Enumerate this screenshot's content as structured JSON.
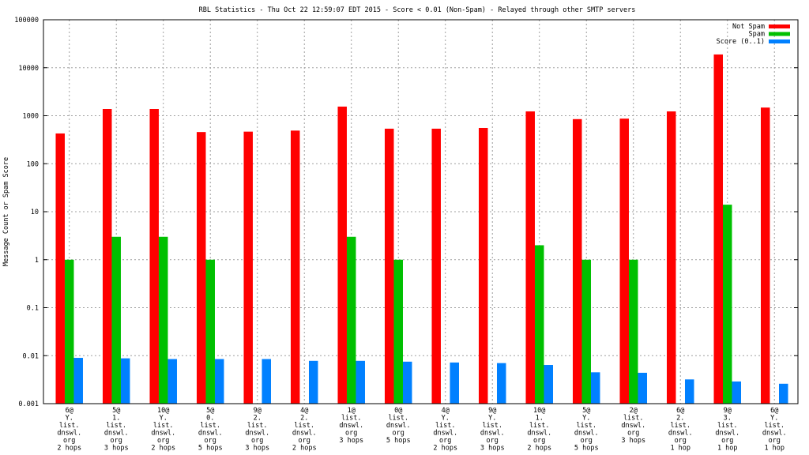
{
  "chart_data": {
    "type": "bar",
    "title": "RBL Statistics - Thu Oct 22 12:59:07 EDT 2015 - Score < 0.01 (Non-Spam) - Relayed through other SMTP servers",
    "xlabel": "",
    "ylabel": "Message Count or Spam Score",
    "yscale": "log",
    "ylim": [
      0.001,
      100000
    ],
    "yticks": [
      "0.001",
      "0.01",
      "0.1",
      "1",
      "10",
      "100",
      "1000",
      "10000",
      "100000"
    ],
    "grid": true,
    "legend_position": "top-right",
    "categories": [
      [
        "6@",
        "Y.",
        "list.",
        "dnswl.",
        "org",
        "2 hops"
      ],
      [
        "5@",
        "1.",
        "list.",
        "dnswl.",
        "org",
        "3 hops"
      ],
      [
        "10@",
        "Y.",
        "list.",
        "dnswl.",
        "org",
        "2 hops"
      ],
      [
        "5@",
        "0.",
        "list.",
        "dnswl.",
        "org",
        "5 hops"
      ],
      [
        "9@",
        "2.",
        "list.",
        "dnswl.",
        "org",
        "3 hops"
      ],
      [
        "4@",
        "2.",
        "list.",
        "dnswl.",
        "org",
        "2 hops"
      ],
      [
        "1@",
        "list.",
        "dnswl.",
        "org",
        "3 hops"
      ],
      [
        "0@",
        "list.",
        "dnswl.",
        "org",
        "5 hops"
      ],
      [
        "4@",
        "Y.",
        "list.",
        "dnswl.",
        "org",
        "2 hops"
      ],
      [
        "9@",
        "Y.",
        "list.",
        "dnswl.",
        "org",
        "3 hops"
      ],
      [
        "10@",
        "1.",
        "list.",
        "dnswl.",
        "org",
        "2 hops"
      ],
      [
        "5@",
        "Y.",
        "list.",
        "dnswl.",
        "org",
        "5 hops"
      ],
      [
        "2@",
        "list.",
        "dnswl.",
        "org",
        "3 hops"
      ],
      [
        "6@",
        "2.",
        "list.",
        "dnswl.",
        "org",
        "1 hop"
      ],
      [
        "9@",
        "3.",
        "list.",
        "dnswl.",
        "org",
        "1 hop"
      ],
      [
        "6@",
        "Y.",
        "list.",
        "dnswl.",
        "org",
        "1 hop"
      ]
    ],
    "series": [
      {
        "name": "Not Spam",
        "color": "#ff0000",
        "values": [
          427,
          1380,
          1380,
          457,
          466,
          490,
          1550,
          537,
          537,
          556,
          1230,
          850,
          870,
          1230,
          18900,
          1480
        ]
      },
      {
        "name": "Spam",
        "color": "#00c000",
        "values": [
          1,
          3,
          3,
          1,
          0,
          0,
          3,
          1,
          0,
          0,
          2,
          1,
          1,
          0,
          14,
          0
        ]
      },
      {
        "name": "Score (0..1)",
        "color": "#0080ff",
        "values": [
          0.009,
          0.0088,
          0.0085,
          0.0085,
          0.0085,
          0.0078,
          0.0078,
          0.0075,
          0.0072,
          0.007,
          0.0064,
          0.0045,
          0.0044,
          0.0032,
          0.0029,
          0.0026
        ]
      }
    ]
  }
}
